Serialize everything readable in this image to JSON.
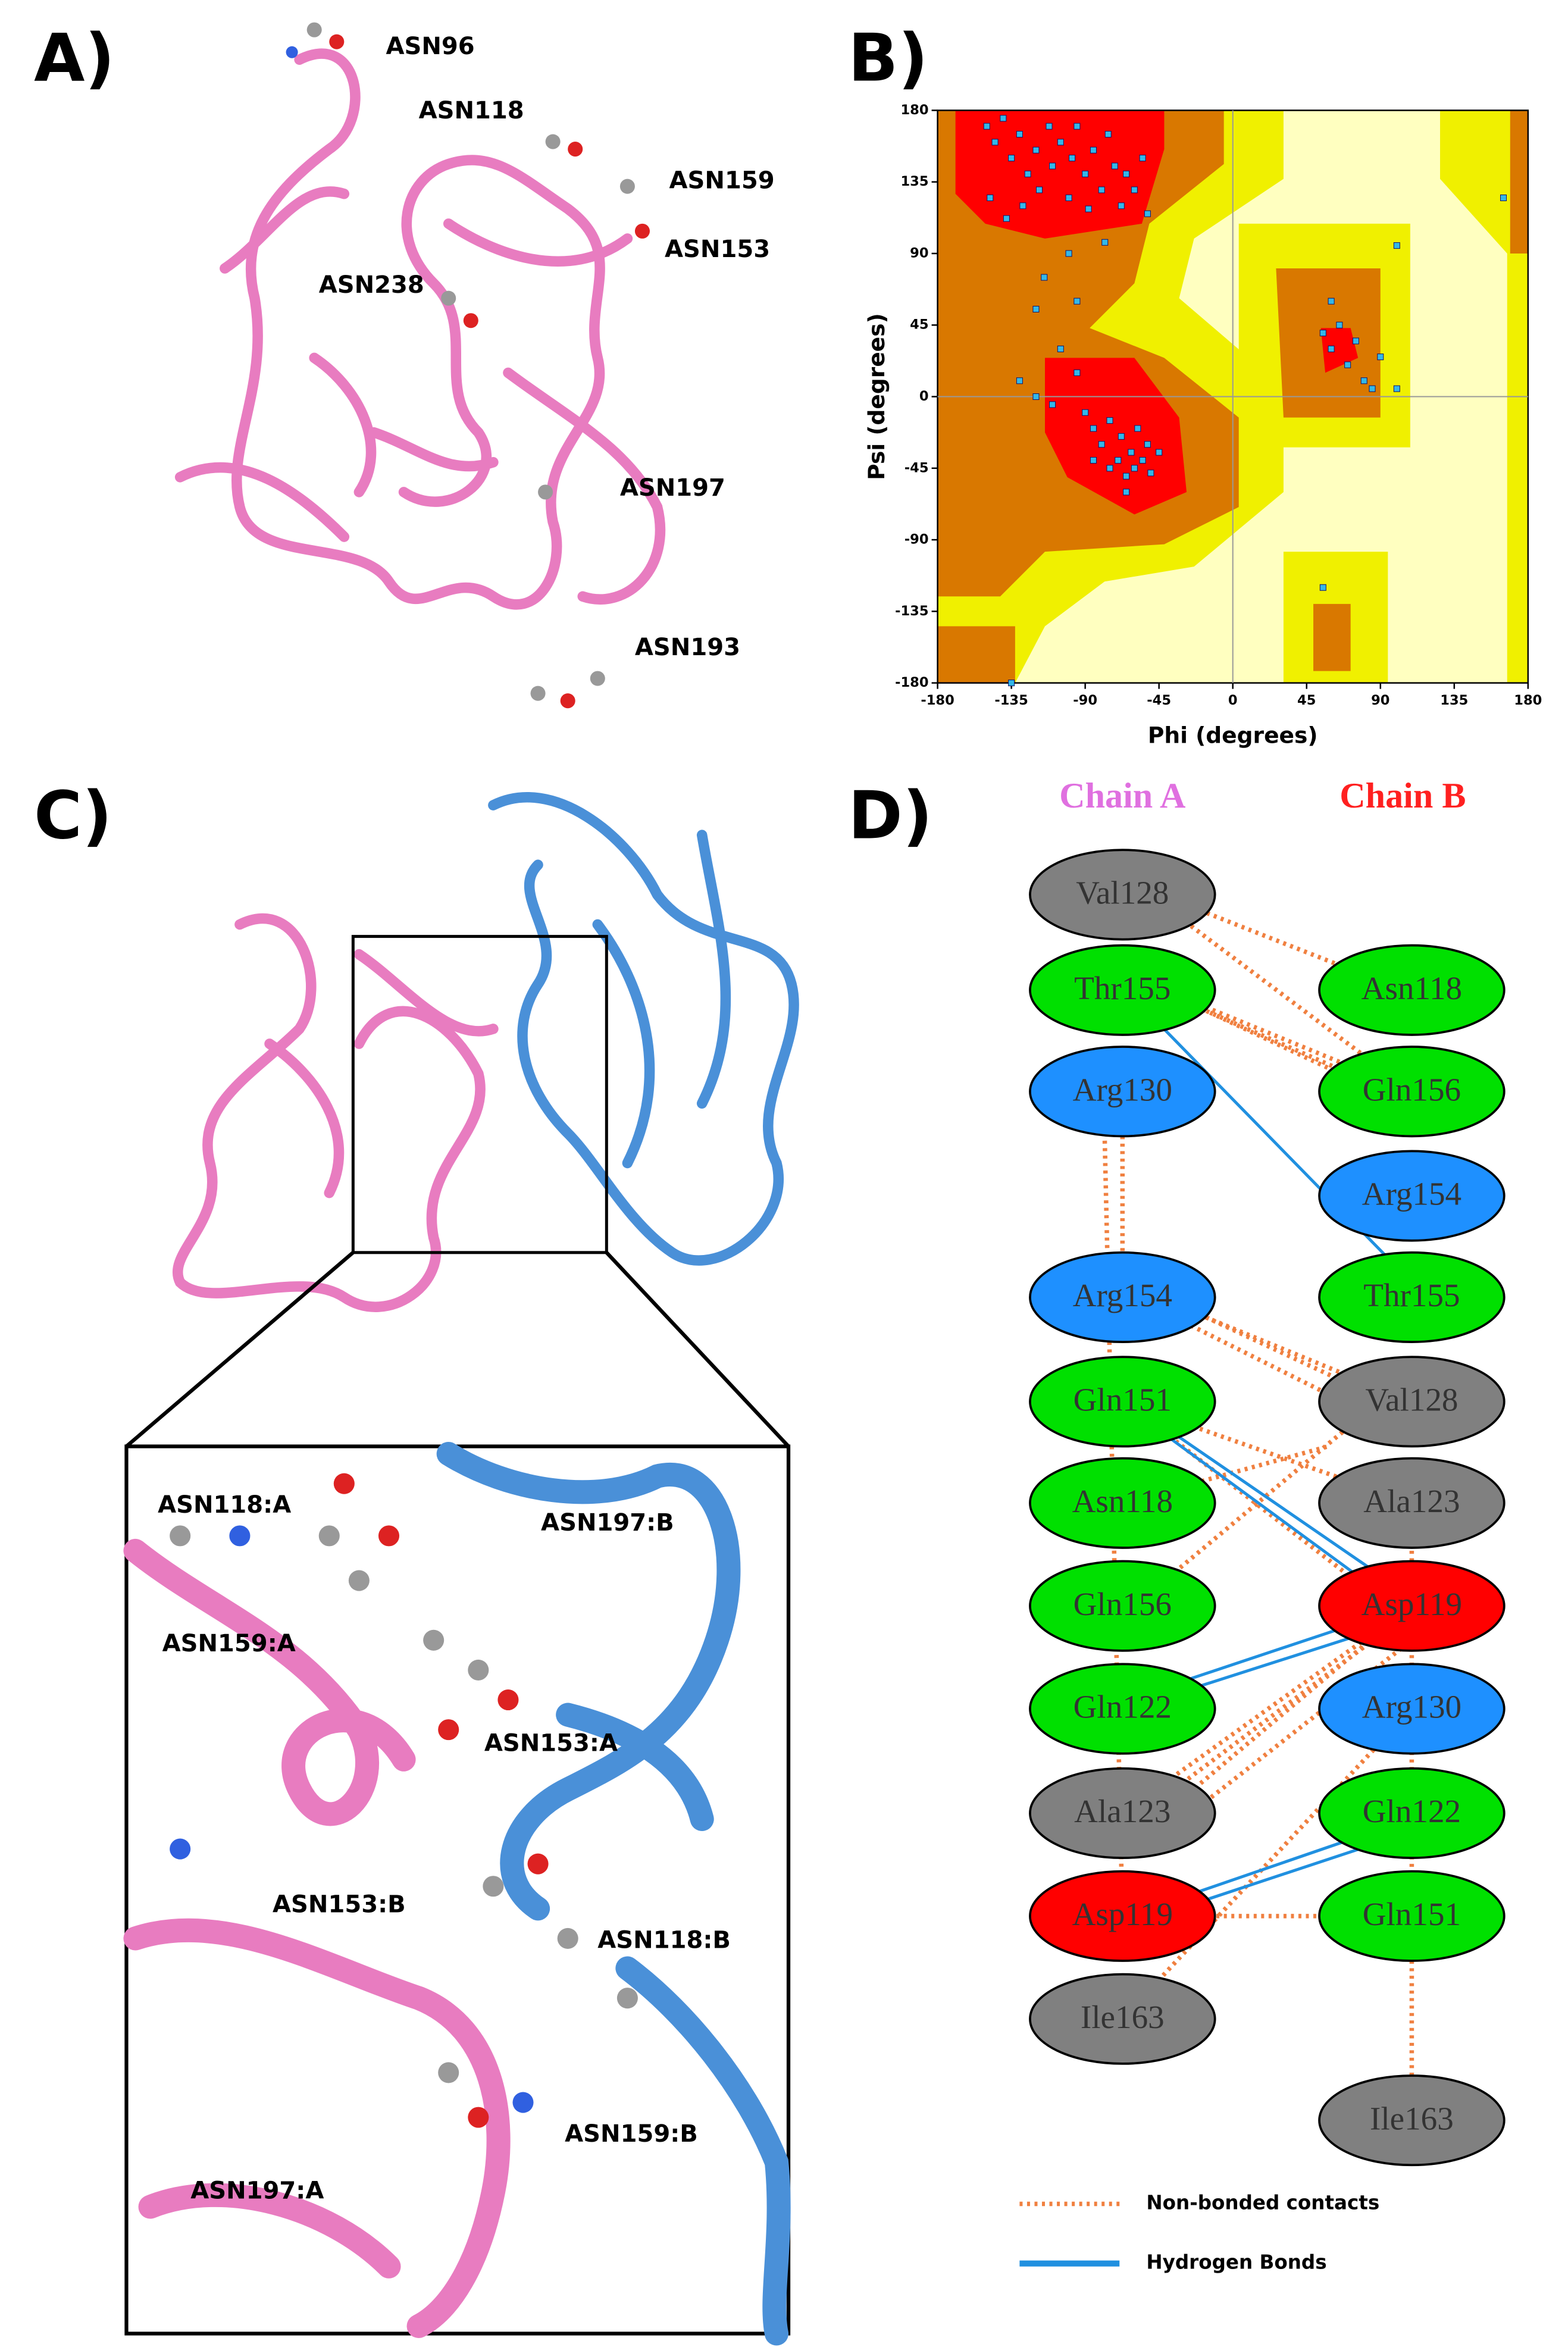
{
  "panel_a": {
    "label": "A)",
    "annotations": [
      "ASN96",
      "ASN118",
      "ASN159",
      "ASN153",
      "ASN238",
      "ASN197",
      "ASN193"
    ]
  },
  "panel_b": {
    "label": "B)",
    "chart_data": {
      "type": "scatter",
      "x_label": "Phi (degrees)",
      "y_label": "Psi (degrees)",
      "xlim": [
        -180,
        180
      ],
      "ylim": [
        -180,
        180
      ],
      "xticks": [
        -180,
        -135,
        -90,
        -45,
        0,
        45,
        90,
        135,
        180
      ],
      "yticks": [
        -180,
        -135,
        -90,
        -45,
        0,
        45,
        90,
        135,
        180
      ],
      "color": "#33b8e8",
      "x": [
        -150,
        -145,
        -140,
        -135,
        -130,
        -125,
        -120,
        -118,
        -112,
        -110,
        -105,
        -100,
        -98,
        -95,
        -90,
        -88,
        -85,
        -80,
        -76,
        -72,
        -68,
        -65,
        -60,
        -55,
        -52,
        -148,
        -138,
        -128,
        -78,
        -100,
        -115,
        -120,
        -95,
        -105,
        -130,
        -120,
        -110,
        -95,
        -90,
        -85,
        -80,
        -75,
        -70,
        -68,
        -65,
        -62,
        -60,
        -58,
        -55,
        -52,
        -50,
        -65,
        -75,
        -85,
        -45,
        55,
        60,
        65,
        70,
        75,
        80,
        85,
        90,
        100,
        60,
        55,
        100,
        165,
        -135
      ],
      "y": [
        170,
        160,
        175,
        150,
        165,
        140,
        155,
        130,
        170,
        145,
        160,
        125,
        150,
        170,
        140,
        118,
        155,
        130,
        165,
        145,
        120,
        140,
        130,
        150,
        115,
        125,
        112,
        120,
        97,
        90,
        75,
        55,
        60,
        30,
        10,
        0,
        -5,
        15,
        -10,
        -20,
        -30,
        -15,
        -40,
        -25,
        -50,
        -35,
        -45,
        -20,
        -40,
        -30,
        -48,
        -60,
        -45,
        -40,
        -35,
        40,
        30,
        45,
        20,
        35,
        10,
        5,
        25,
        5,
        60,
        -120,
        95,
        125,
        -180
      ]
    }
  },
  "panel_c": {
    "label": "C)",
    "annotations": [
      "ASN118:A",
      "ASN197:B",
      "ASN159:A",
      "ASN153:A",
      "ASN153:B",
      "ASN118:B",
      "ASN159:B",
      "ASN197:A"
    ]
  },
  "panel_d": {
    "label": "D)",
    "chain_a": {
      "title": "Chain A",
      "residues": [
        {
          "label": "Val128",
          "color": "#808080"
        },
        {
          "label": "Thr155",
          "color": "#00e000"
        },
        {
          "label": "Arg130",
          "color": "#1e90ff"
        },
        {
          "label": "Arg154",
          "color": "#1e90ff"
        },
        {
          "label": "Gln151",
          "color": "#00e000"
        },
        {
          "label": "Asn118",
          "color": "#00e000"
        },
        {
          "label": "Gln156",
          "color": "#00e000"
        },
        {
          "label": "Gln122",
          "color": "#00e000"
        },
        {
          "label": "Ala123",
          "color": "#808080"
        },
        {
          "label": "Asp119",
          "color": "#ff0000"
        },
        {
          "label": "Ile163",
          "color": "#808080"
        }
      ]
    },
    "chain_b": {
      "title": "Chain B",
      "residues": [
        {
          "label": "Asn118",
          "color": "#00e000"
        },
        {
          "label": "Gln156",
          "color": "#00e000"
        },
        {
          "label": "Arg154",
          "color": "#1e90ff"
        },
        {
          "label": "Thr155",
          "color": "#00e000"
        },
        {
          "label": "Val128",
          "color": "#808080"
        },
        {
          "label": "Ala123",
          "color": "#808080"
        },
        {
          "label": "Asp119",
          "color": "#ff0000"
        },
        {
          "label": "Arg130",
          "color": "#1e90ff"
        },
        {
          "label": "Gln122",
          "color": "#00e000"
        },
        {
          "label": "Gln151",
          "color": "#00e000"
        },
        {
          "label": "Ile163",
          "color": "#808080"
        }
      ]
    },
    "legend": [
      "Non-bonded contacts",
      "Hydrogen Bonds"
    ]
  }
}
